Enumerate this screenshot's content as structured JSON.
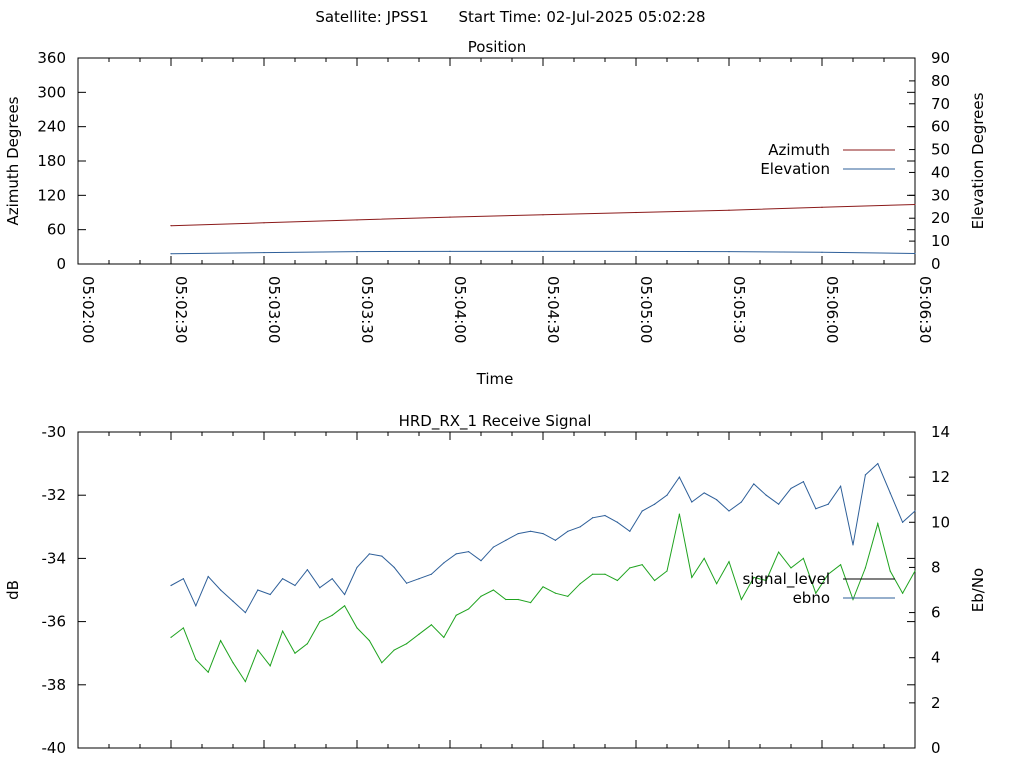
{
  "header": {
    "satellite_label": "Satellite: JPSS1",
    "start_time_label": "Start Time: 02-Jul-2025 05:02:28"
  },
  "chart_data": [
    {
      "type": "line",
      "title": "Position",
      "xlabel": "Time",
      "ylabel": "Azimuth Degrees",
      "y2label": "Elevation Degrees",
      "x_ticks": [
        "05:02:00",
        "05:02:30",
        "05:03:00",
        "05:03:30",
        "05:04:00",
        "05:04:30",
        "05:05:00",
        "05:05:30",
        "05:06:00",
        "05:06:30"
      ],
      "xlim_seconds": [
        0,
        270
      ],
      "ylim": [
        0,
        360
      ],
      "y_ticks": [
        0,
        60,
        120,
        180,
        240,
        300,
        360
      ],
      "y2lim": [
        0,
        90
      ],
      "y2_ticks": [
        0,
        10,
        20,
        30,
        40,
        50,
        60,
        70,
        80,
        90
      ],
      "legend_position": "right",
      "series": [
        {
          "name": "Azimuth",
          "axis": "left",
          "color": "#8b1a1a",
          "x": [
            30,
            60,
            90,
            120,
            150,
            180,
            210,
            240,
            270
          ],
          "y": [
            67,
            72,
            77,
            82,
            86,
            90,
            94,
            99,
            104
          ]
        },
        {
          "name": "Elevation",
          "axis": "right",
          "color": "#2e5f99",
          "x": [
            30,
            60,
            90,
            120,
            150,
            180,
            210,
            240,
            270
          ],
          "y": [
            4.5,
            5.0,
            5.4,
            5.5,
            5.5,
            5.5,
            5.4,
            5.1,
            4.6
          ]
        }
      ]
    },
    {
      "type": "line",
      "title": "HRD_RX_1 Receive Signal",
      "xlabel": "",
      "ylabel": "dB",
      "y2label": "Eb/No",
      "ylim": [
        -40,
        -30
      ],
      "y_ticks": [
        -40,
        -38,
        -36,
        -34,
        -32,
        -30
      ],
      "y2lim": [
        0,
        14
      ],
      "y2_ticks": [
        0,
        2,
        4,
        6,
        8,
        10,
        12,
        14
      ],
      "xlim_seconds": [
        0,
        270
      ],
      "legend_position": "right",
      "series": [
        {
          "name": "signal_level",
          "axis": "left",
          "color": "#000000",
          "x": [],
          "y": []
        },
        {
          "name": "ebno",
          "axis": "right",
          "color": "#2e5f99",
          "x": [
            30,
            34,
            38,
            42,
            46,
            50,
            54,
            58,
            62,
            66,
            70,
            74,
            78,
            82,
            86,
            90,
            94,
            98,
            102,
            106,
            110,
            114,
            118,
            122,
            126,
            130,
            134,
            138,
            142,
            146,
            150,
            154,
            158,
            162,
            166,
            170,
            174,
            178,
            182,
            186,
            190,
            194,
            198,
            202,
            206,
            210,
            214,
            218,
            222,
            226,
            230,
            234,
            238,
            242,
            246,
            250,
            254,
            258,
            262,
            266,
            270
          ],
          "y": [
            7.2,
            7.5,
            6.3,
            7.6,
            7.0,
            6.5,
            6.0,
            7.0,
            6.8,
            7.5,
            7.2,
            7.9,
            7.1,
            7.5,
            6.8,
            8.0,
            8.6,
            8.5,
            8.0,
            7.3,
            7.5,
            7.7,
            8.2,
            8.6,
            8.7,
            8.3,
            8.9,
            9.2,
            9.5,
            9.6,
            9.5,
            9.2,
            9.6,
            9.8,
            10.2,
            10.3,
            10.0,
            9.6,
            10.5,
            10.8,
            11.2,
            12.0,
            10.9,
            11.3,
            11.0,
            10.5,
            10.9,
            11.7,
            11.2,
            10.8,
            11.5,
            11.8,
            10.6,
            10.8,
            11.6,
            9.0,
            12.1,
            12.6,
            11.3,
            10.0,
            10.5
          ]
        },
        {
          "name": "",
          "axis": "left",
          "color": "#1fa31f",
          "x": [
            30,
            34,
            38,
            42,
            46,
            50,
            54,
            58,
            62,
            66,
            70,
            74,
            78,
            82,
            86,
            90,
            94,
            98,
            102,
            106,
            110,
            114,
            118,
            122,
            126,
            130,
            134,
            138,
            142,
            146,
            150,
            154,
            158,
            162,
            166,
            170,
            174,
            178,
            182,
            186,
            190,
            194,
            198,
            202,
            206,
            210,
            214,
            218,
            222,
            226,
            230,
            234,
            238,
            242,
            246,
            250,
            254,
            258,
            262,
            266,
            270
          ],
          "y": [
            -36.5,
            -36.2,
            -37.2,
            -37.6,
            -36.6,
            -37.3,
            -37.9,
            -36.9,
            -37.4,
            -36.3,
            -37.0,
            -36.7,
            -36.0,
            -35.8,
            -35.5,
            -36.2,
            -36.6,
            -37.3,
            -36.9,
            -36.7,
            -36.4,
            -36.1,
            -36.5,
            -35.8,
            -35.6,
            -35.2,
            -35.0,
            -35.3,
            -35.3,
            -35.4,
            -34.9,
            -35.1,
            -35.2,
            -34.8,
            -34.5,
            -34.5,
            -34.7,
            -34.3,
            -34.2,
            -34.7,
            -34.4,
            -32.6,
            -34.6,
            -34.0,
            -34.8,
            -34.1,
            -35.3,
            -34.6,
            -34.7,
            -33.8,
            -34.3,
            -34.0,
            -35.1,
            -34.5,
            -34.2,
            -35.3,
            -34.3,
            -32.9,
            -34.4,
            -35.1,
            -34.4
          ]
        }
      ]
    }
  ]
}
